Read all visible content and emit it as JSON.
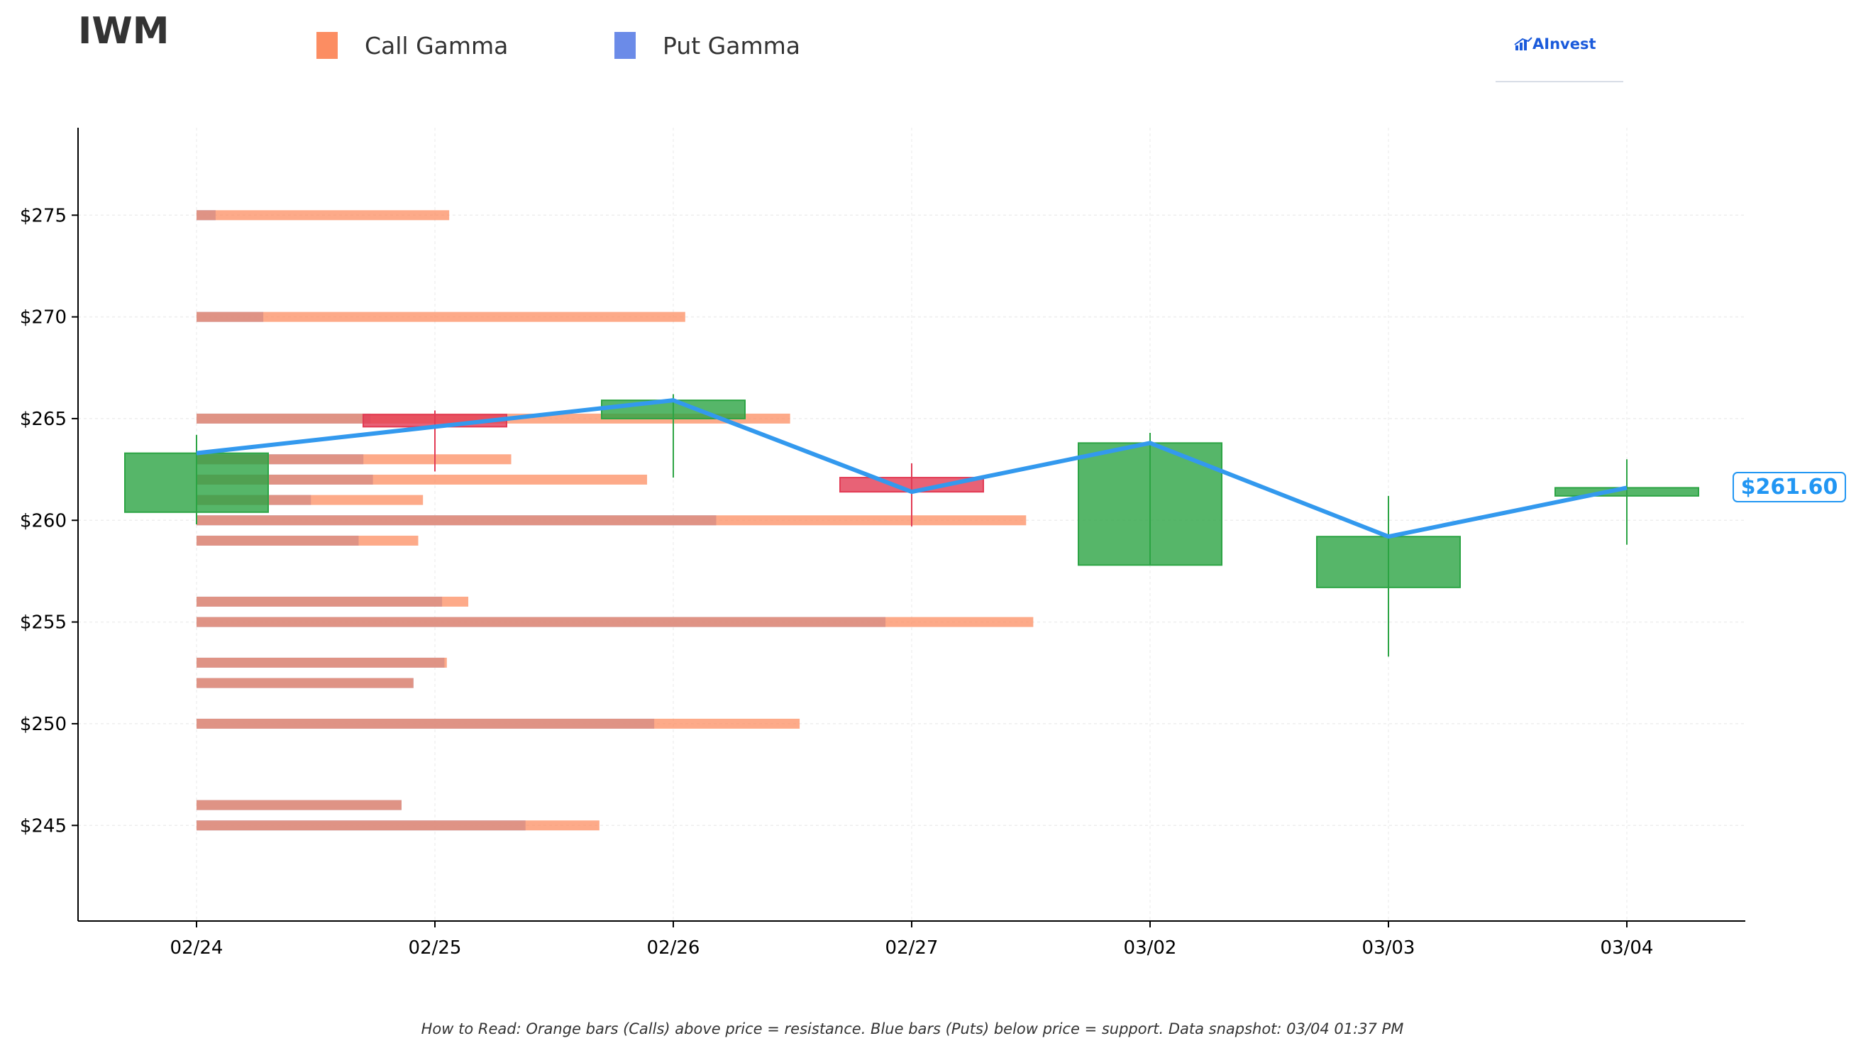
{
  "ticker": "IWM",
  "legend": [
    {
      "label": "Call Gamma",
      "color": "#fc8d62"
    },
    {
      "label": "Put Gamma",
      "color": "#6b8be8"
    }
  ],
  "logo_text": "AInvest",
  "current_price_label": "$261.60",
  "footnote": "How to Read: Orange bars (Calls) above price = resistance. Blue bars (Puts) below price = support. Data snapshot: 03/04 01:37 PM",
  "colors": {
    "call": "#fc8d62",
    "put": "#6b8be8",
    "up_candle": "#2ca444",
    "down_candle": "#e23b54",
    "price_line": "#3399ee"
  },
  "chart_data": {
    "type": "candlestick_with_gamma_bars",
    "categories": [
      "02/24",
      "02/25",
      "02/26",
      "02/27",
      "03/02",
      "03/03",
      "03/04"
    ],
    "ylim": [
      240.3,
      279.3
    ],
    "yticks": [
      245,
      250,
      255,
      260,
      265,
      270,
      275
    ],
    "ytick_labels": [
      "$245",
      "$250",
      "$255",
      "$260",
      "$265",
      "$270",
      "$275"
    ],
    "candles": [
      {
        "date": "02/24",
        "open": 260.4,
        "high": 264.2,
        "low": 259.8,
        "close": 263.3
      },
      {
        "date": "02/25",
        "open": 265.2,
        "high": 265.4,
        "low": 262.4,
        "close": 264.6
      },
      {
        "date": "02/26",
        "open": 265.0,
        "high": 266.2,
        "low": 262.1,
        "close": 265.9
      },
      {
        "date": "02/27",
        "open": 262.1,
        "high": 262.8,
        "low": 259.7,
        "close": 261.4
      },
      {
        "date": "03/02",
        "open": 257.8,
        "high": 264.3,
        "low": 257.8,
        "close": 263.8
      },
      {
        "date": "03/03",
        "open": 256.7,
        "high": 261.2,
        "low": 253.3,
        "close": 259.2
      },
      {
        "date": "03/04",
        "open": 261.2,
        "high": 263.0,
        "low": 258.8,
        "close": 261.6
      }
    ],
    "price_line": [
      263.3,
      264.6,
      265.9,
      261.4,
      263.8,
      259.2,
      261.6
    ],
    "current_price": 261.6,
    "gamma_x_unit": "trading days from 02/24",
    "gamma_levels": [
      {
        "strike": 275,
        "put": 0.08,
        "call": 1.06
      },
      {
        "strike": 270,
        "put": 0.28,
        "call": 2.05
      },
      {
        "strike": 265,
        "put": 0.73,
        "call": 2.49
      },
      {
        "strike": 263,
        "put": 0.7,
        "call": 1.32
      },
      {
        "strike": 262,
        "put": 0.74,
        "call": 1.89
      },
      {
        "strike": 261,
        "put": 0.48,
        "call": 0.95
      },
      {
        "strike": 260,
        "put": 2.18,
        "call": 3.48
      },
      {
        "strike": 259,
        "put": 0.68,
        "call": 0.93
      },
      {
        "strike": 256,
        "put": 1.03,
        "call": 1.14
      },
      {
        "strike": 255,
        "put": 2.89,
        "call": 3.51
      },
      {
        "strike": 253,
        "put": 1.04,
        "call": 1.05
      },
      {
        "strike": 252,
        "put": 0.91,
        "call": 0.91
      },
      {
        "strike": 250,
        "put": 1.92,
        "call": 2.53
      },
      {
        "strike": 246,
        "put": 0.86,
        "call": 0.86
      },
      {
        "strike": 245,
        "put": 1.38,
        "call": 1.69
      }
    ]
  }
}
